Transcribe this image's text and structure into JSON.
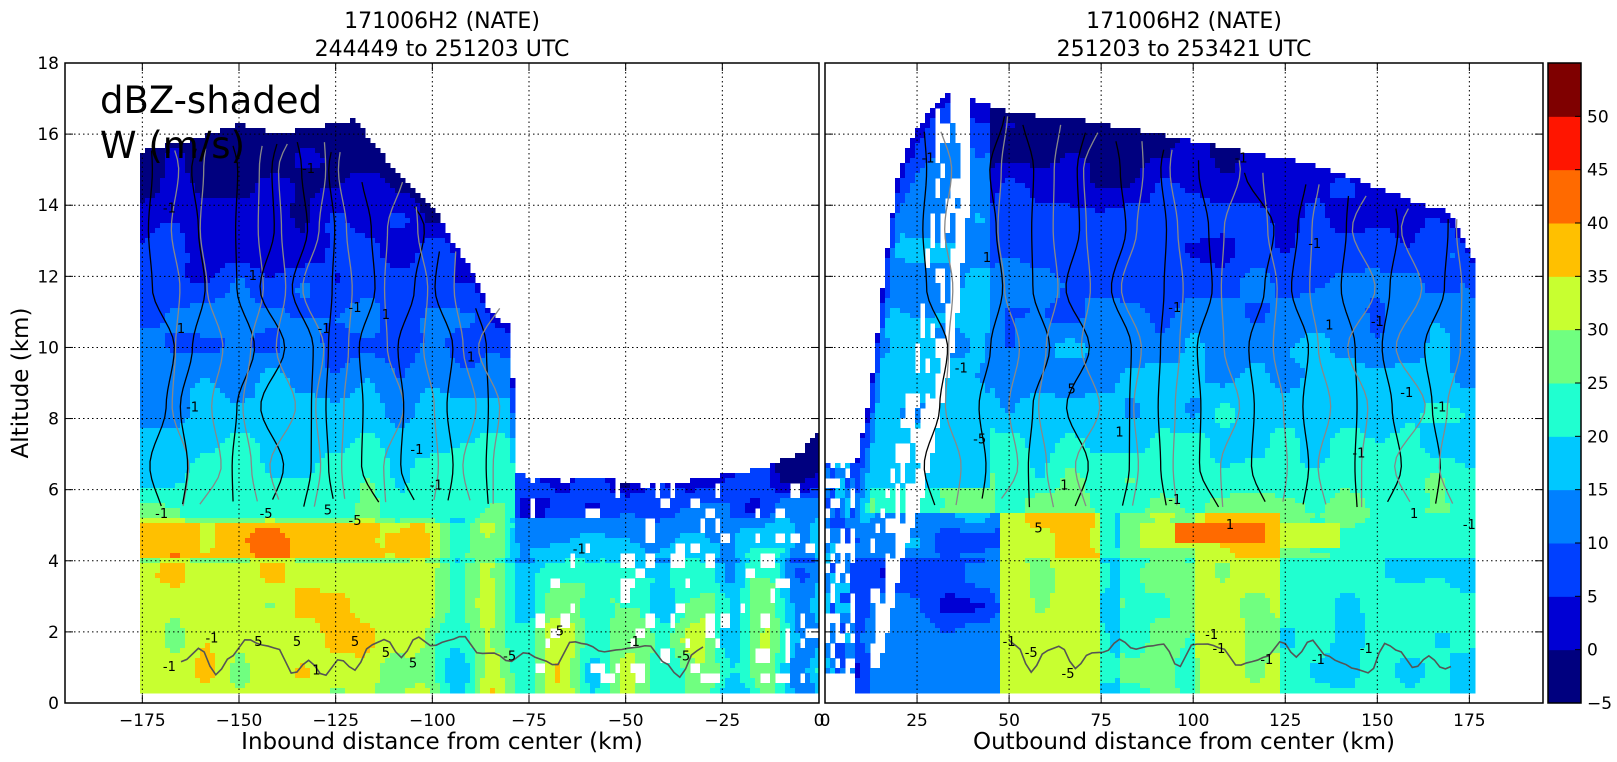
{
  "chart_data": [
    {
      "type": "heatmap",
      "title_line1": "171006H2 (NATE)",
      "title_line2": "244449 to 251203 UTC",
      "xlabel": "Inbound distance from center (km)",
      "ylabel": "Altitude (km)",
      "annotation_line1": "dBZ-shaded",
      "annotation_line2": "W (m/s)",
      "xlim": [
        -195,
        0
      ],
      "ylim": [
        0,
        18
      ],
      "xticks": [
        -175,
        -150,
        -125,
        -100,
        -75,
        -50,
        -25,
        0
      ],
      "yticks": [
        0,
        2,
        4,
        6,
        8,
        10,
        12,
        14,
        16,
        18
      ],
      "grid": true,
      "contour_labels": [
        {
          "x": -132,
          "y": 14.9,
          "text": "-1"
        },
        {
          "x": -168,
          "y": 13.8,
          "text": "-1"
        },
        {
          "x": -165,
          "y": 10.4,
          "text": "1"
        },
        {
          "x": -162,
          "y": 8.2,
          "text": "-1"
        },
        {
          "x": -147,
          "y": 11.9,
          "text": "-1"
        },
        {
          "x": -128,
          "y": 10.4,
          "text": "-1"
        },
        {
          "x": -112,
          "y": 10.8,
          "text": "1"
        },
        {
          "x": -104,
          "y": 7.0,
          "text": "-1"
        },
        {
          "x": -99,
          "y": 6.0,
          "text": "-1"
        },
        {
          "x": -90,
          "y": 9.6,
          "text": "1"
        },
        {
          "x": -143,
          "y": 5.2,
          "text": "-5"
        },
        {
          "x": -127,
          "y": 5.3,
          "text": "5"
        },
        {
          "x": -120,
          "y": 5.0,
          "text": "-5"
        },
        {
          "x": -170,
          "y": 5.2,
          "text": "-1"
        },
        {
          "x": -157,
          "y": 1.7,
          "text": "-1"
        },
        {
          "x": -145,
          "y": 1.6,
          "text": "5"
        },
        {
          "x": -135,
          "y": 1.6,
          "text": "5"
        },
        {
          "x": -120,
          "y": 1.6,
          "text": "5"
        },
        {
          "x": -112,
          "y": 1.3,
          "text": "5"
        },
        {
          "x": -105,
          "y": 1.0,
          "text": "5"
        },
        {
          "x": -168,
          "y": 0.9,
          "text": "-1"
        },
        {
          "x": -130,
          "y": 0.8,
          "text": "1"
        },
        {
          "x": -80,
          "y": 1.2,
          "text": "-5"
        },
        {
          "x": -67,
          "y": 1.9,
          "text": "5"
        },
        {
          "x": -48,
          "y": 1.6,
          "text": "-1"
        },
        {
          "x": -62,
          "y": 4.2,
          "text": "-1"
        },
        {
          "x": -35,
          "y": 1.2,
          "text": "-5"
        },
        {
          "x": -120,
          "y": 11.0,
          "text": "-1"
        }
      ]
    },
    {
      "type": "heatmap",
      "title_line1": "171006H2 (NATE)",
      "title_line2": "251203 to 253421 UTC",
      "xlabel": "Outbound distance from center (km)",
      "xlim": [
        0,
        195
      ],
      "ylim": [
        0,
        18
      ],
      "xticks": [
        0,
        25,
        50,
        75,
        100,
        125,
        150,
        175
      ],
      "yticks": [
        0,
        2,
        4,
        6,
        8,
        10,
        12,
        14,
        16,
        18
      ],
      "grid": true,
      "contour_labels": [
        {
          "x": 28,
          "y": 15.2,
          "text": "-1"
        },
        {
          "x": 44,
          "y": 12.4,
          "text": "1"
        },
        {
          "x": 37,
          "y": 9.3,
          "text": "-1"
        },
        {
          "x": 67,
          "y": 8.7,
          "text": "5"
        },
        {
          "x": 42,
          "y": 7.3,
          "text": "-5"
        },
        {
          "x": 65,
          "y": 6.0,
          "text": "1"
        },
        {
          "x": 80,
          "y": 7.5,
          "text": "1"
        },
        {
          "x": 95,
          "y": 11.0,
          "text": "-1"
        },
        {
          "x": 113,
          "y": 15.2,
          "text": "-1"
        },
        {
          "x": 133,
          "y": 12.8,
          "text": "-1"
        },
        {
          "x": 137,
          "y": 10.5,
          "text": "1"
        },
        {
          "x": 150,
          "y": 10.6,
          "text": "-1"
        },
        {
          "x": 158,
          "y": 8.6,
          "text": "-1"
        },
        {
          "x": 167,
          "y": 8.2,
          "text": "-1"
        },
        {
          "x": 145,
          "y": 6.9,
          "text": "-1"
        },
        {
          "x": 160,
          "y": 5.2,
          "text": "1"
        },
        {
          "x": 175,
          "y": 4.9,
          "text": "-1"
        },
        {
          "x": 95,
          "y": 5.6,
          "text": "-1"
        },
        {
          "x": 110,
          "y": 4.9,
          "text": "1"
        },
        {
          "x": 58,
          "y": 4.8,
          "text": "5"
        },
        {
          "x": 105,
          "y": 1.8,
          "text": "-1"
        },
        {
          "x": 107,
          "y": 1.4,
          "text": "-1"
        },
        {
          "x": 120,
          "y": 1.1,
          "text": "-1"
        },
        {
          "x": 50,
          "y": 1.6,
          "text": "-1"
        },
        {
          "x": 56,
          "y": 1.3,
          "text": "-5"
        },
        {
          "x": 66,
          "y": 0.7,
          "text": "-5"
        },
        {
          "x": 147,
          "y": 1.4,
          "text": "-1"
        },
        {
          "x": 134,
          "y": 1.1,
          "text": "-1"
        }
      ]
    }
  ],
  "colorbar": {
    "ticks": [
      -5,
      0,
      5,
      10,
      15,
      20,
      25,
      30,
      35,
      40,
      45,
      50
    ],
    "colors": [
      "#00007f",
      "#0000d4",
      "#0040ff",
      "#0080ff",
      "#00c8ff",
      "#20ffd0",
      "#70ff80",
      "#c8ff30",
      "#ffc000",
      "#ff6a00",
      "#ff1500",
      "#7f0000"
    ]
  }
}
